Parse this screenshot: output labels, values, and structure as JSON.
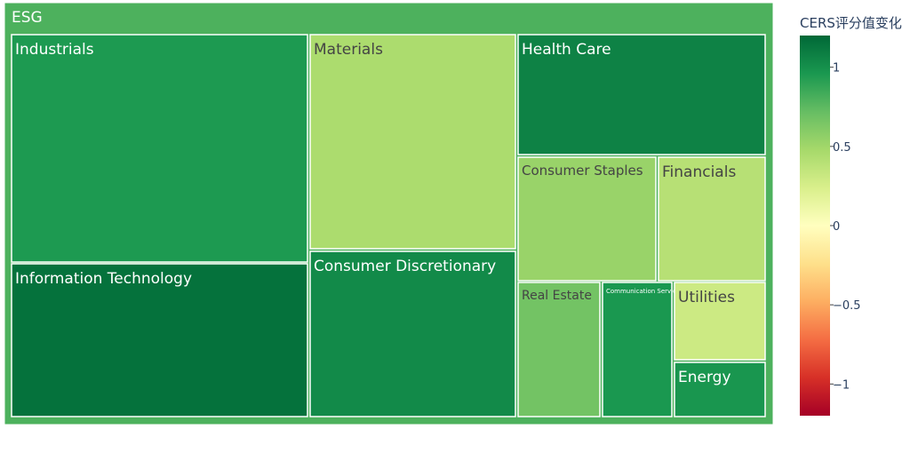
{
  "chart_data": {
    "type": "treemap",
    "root": {
      "label": "ESG",
      "value": 0.8
    },
    "nodes": [
      {
        "label": "Industrials",
        "value": 0.95,
        "text_color": "#ffffff",
        "font": 17
      },
      {
        "label": "Information Technology",
        "value": 1.15,
        "text_color": "#ffffff",
        "font": 17
      },
      {
        "label": "Materials",
        "value": 0.45,
        "text_color": "#444444",
        "font": 17
      },
      {
        "label": "Consumer Discretionary",
        "value": 1.03,
        "text_color": "#ffffff",
        "font": 17
      },
      {
        "label": "Health Care",
        "value": 1.07,
        "text_color": "#ffffff",
        "font": 17
      },
      {
        "label": "Consumer Staples",
        "value": 0.53,
        "text_color": "#444444",
        "font": 15
      },
      {
        "label": "Financials",
        "value": 0.4,
        "text_color": "#444444",
        "font": 17
      },
      {
        "label": "Real Estate",
        "value": 0.67,
        "text_color": "#444444",
        "font": 14
      },
      {
        "label": "Communication Services",
        "value": 0.96,
        "text_color": "#ffffff",
        "font": 7
      },
      {
        "label": "Utilities",
        "value": 0.3,
        "text_color": "#444444",
        "font": 17
      },
      {
        "label": "Energy",
        "value": 0.97,
        "text_color": "#ffffff",
        "font": 17
      }
    ],
    "colorbar": {
      "title": "CERS评分值变化",
      "range": [
        -1.2,
        1.2
      ],
      "ticks": [
        1,
        0.5,
        0,
        -0.5,
        -1
      ],
      "tick_labels": [
        "1",
        "0.5",
        "0",
        "−0.5",
        "−1"
      ],
      "colorscale": [
        "#a50026",
        "#d73027",
        "#f46d43",
        "#fdae61",
        "#fee08b",
        "#ffffbf",
        "#d9ef8b",
        "#a6d96a",
        "#66bd63",
        "#1a9850",
        "#006837"
      ]
    }
  }
}
